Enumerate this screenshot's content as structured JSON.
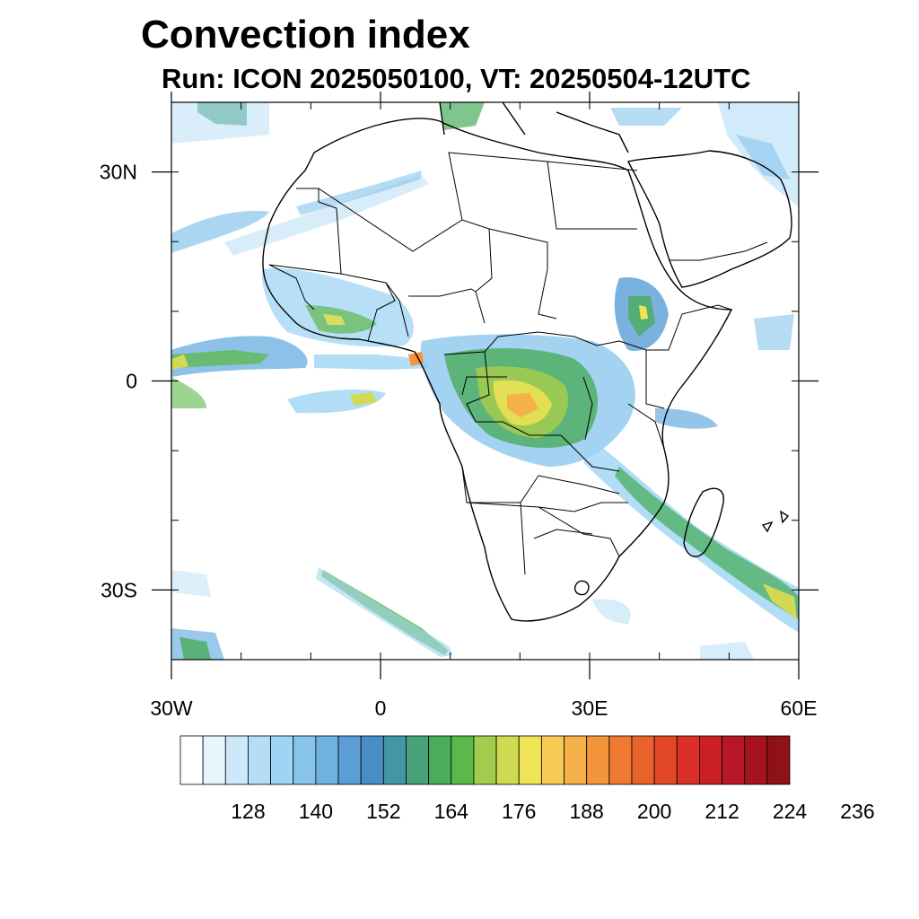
{
  "title": "Convection index",
  "subtitle": "Run: ICON 2025050100,  VT: 20250504-12UTC",
  "map": {
    "lon_range": [
      -30,
      60
    ],
    "lat_range": [
      -40,
      40
    ],
    "x_ticks": [
      {
        "lon": -30,
        "label": "30W"
      },
      {
        "lon": 0,
        "label": "0"
      },
      {
        "lon": 30,
        "label": "30E"
      },
      {
        "lon": 60,
        "label": "60E"
      }
    ],
    "y_ticks": [
      {
        "lat": 30,
        "label": "30N"
      },
      {
        "lat": 0,
        "label": "0"
      },
      {
        "lat": -30,
        "label": "30S"
      }
    ]
  },
  "colorbar": {
    "labels": [
      "128",
      "140",
      "152",
      "164",
      "176",
      "188",
      "200",
      "212",
      "224",
      "236"
    ],
    "colors": [
      "#ffffff",
      "#e8f5fd",
      "#cde9f9",
      "#b4def6",
      "#9fd4f4",
      "#86c4ec",
      "#70b2e2",
      "#5a9ed5",
      "#4a8dc5",
      "#4596a4",
      "#47a27a",
      "#4aad5d",
      "#5cb84a",
      "#a4cc4c",
      "#d1da52",
      "#efe356",
      "#f7c955",
      "#f5b049",
      "#f3953a",
      "#ef7a32",
      "#e9612b",
      "#e24727",
      "#dc2f27",
      "#cb1f26",
      "#b81725",
      "#a5131f",
      "#8e1217"
    ]
  }
}
